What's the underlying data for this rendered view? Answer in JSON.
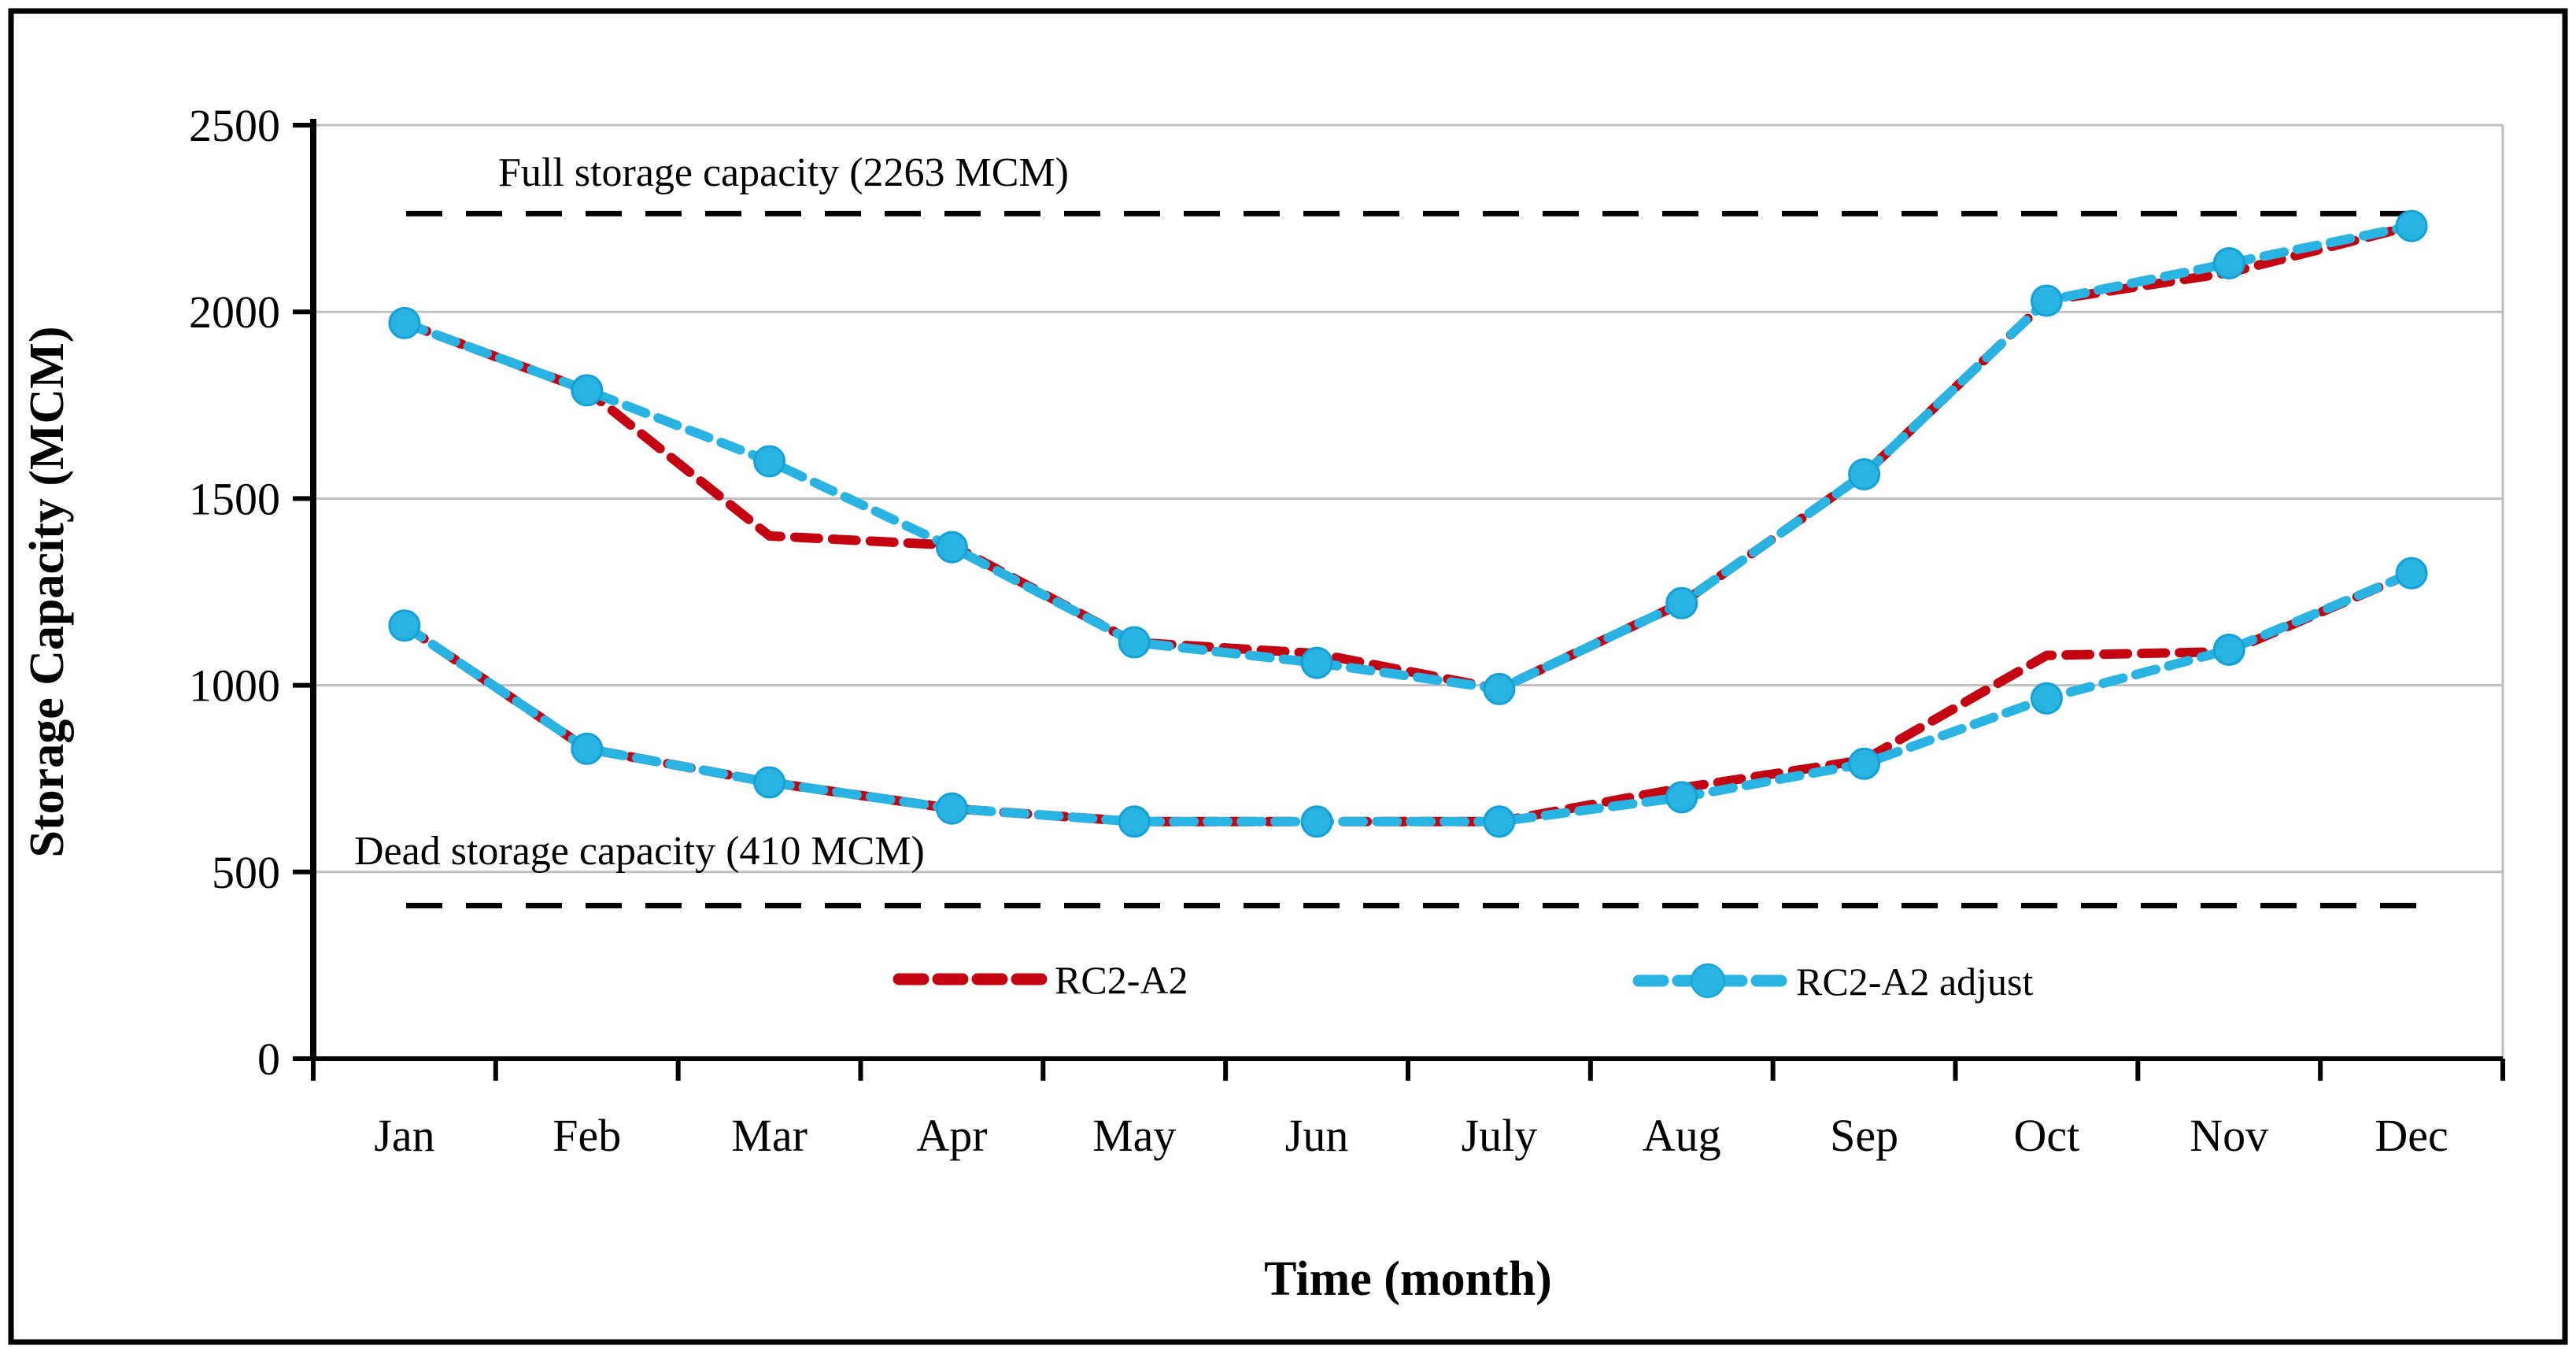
{
  "figure": {
    "background": "#ffffff",
    "border_color": "#000000"
  },
  "chart_data": {
    "type": "line",
    "title": "",
    "xlabel": "Time (month)",
    "ylabel": "Storage Capacity (MCM)",
    "categories": [
      "Jan",
      "Feb",
      "Mar",
      "Apr",
      "May",
      "Jun",
      "July",
      "Aug",
      "Sep",
      "Oct",
      "Nov",
      "Dec"
    ],
    "ylim": [
      0,
      2500
    ],
    "yticks": [
      0,
      500,
      1000,
      1500,
      2000,
      2500
    ],
    "grid": true,
    "grid_color": "#bfbfbf",
    "axis_color": "#000000",
    "legend_position": "bottom-inside",
    "reference_lines": [
      {
        "id": "full",
        "label": "Full storage capacity (2263 MCM)",
        "value": 2263,
        "color": "#000000",
        "style": "dashed"
      },
      {
        "id": "dead",
        "label": "Dead storage capacity (410 MCM)",
        "value": 410,
        "color": "#000000",
        "style": "dashed"
      }
    ],
    "series": [
      {
        "name": "RC2-A2",
        "color": "#c40511",
        "line_style": "dashed",
        "marker": "none",
        "curves": {
          "upper": [
            1970,
            1790,
            1400,
            1375,
            1115,
            1085,
            990,
            1220,
            1565,
            2030,
            2105,
            2230
          ],
          "lower": [
            1160,
            830,
            740,
            670,
            635,
            635,
            635,
            725,
            800,
            1080,
            1090,
            1300
          ]
        }
      },
      {
        "name": "RC2-A2 adjust",
        "color": "#29b3e3",
        "marker_edge_color": "#14a2d6",
        "line_style": "dashed",
        "marker": "circle",
        "curves": {
          "upper": [
            1970,
            1790,
            1600,
            1370,
            1115,
            1060,
            990,
            1220,
            1565,
            2030,
            2130,
            2230
          ],
          "lower": [
            1160,
            830,
            740,
            670,
            635,
            635,
            635,
            700,
            790,
            965,
            1095,
            1300
          ]
        }
      }
    ]
  }
}
